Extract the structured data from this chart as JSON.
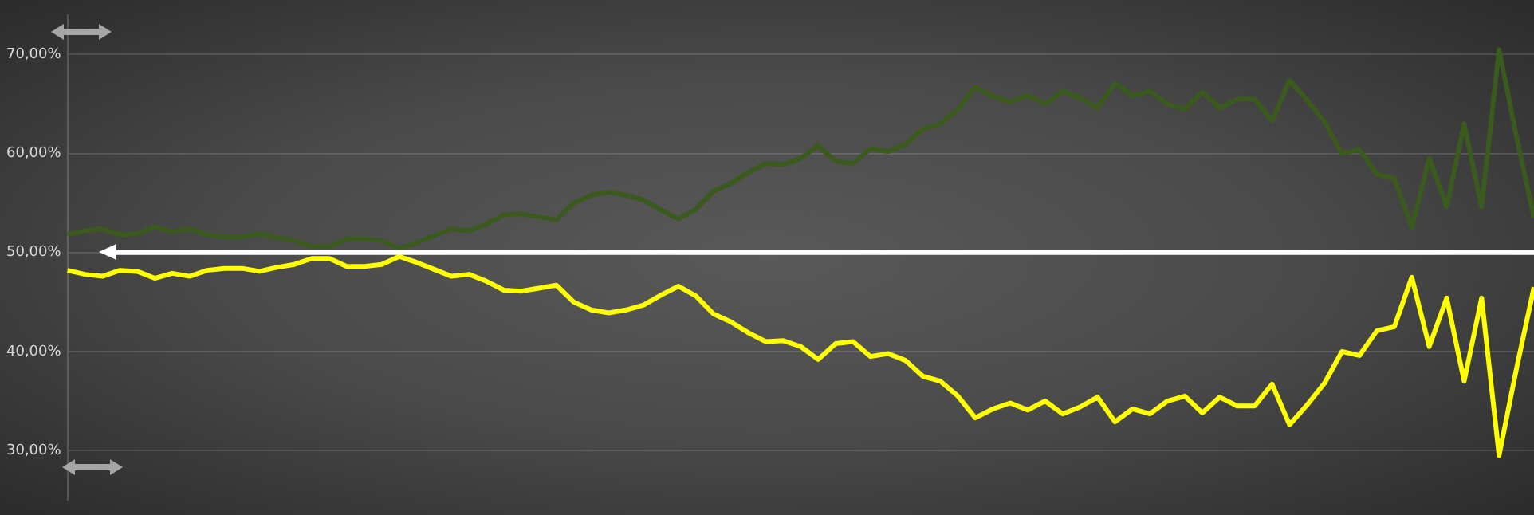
{
  "chart_data": {
    "type": "line",
    "categories": [
      null,
      null,
      null,
      null,
      null,
      null,
      null,
      null,
      null,
      null,
      null,
      null,
      null,
      null,
      null,
      null,
      null,
      null,
      null,
      null,
      null,
      null,
      null,
      null,
      null,
      null,
      null,
      null,
      null,
      null,
      null,
      null,
      null,
      null,
      null,
      null,
      null,
      null,
      null,
      null,
      null,
      null,
      null,
      null,
      null,
      null,
      null,
      null,
      null,
      null,
      null,
      null,
      null,
      null,
      null,
      null,
      null,
      null,
      null,
      null,
      null,
      null,
      null,
      null,
      null,
      null,
      null,
      null,
      null,
      null,
      null,
      null,
      null,
      null,
      null,
      null,
      null,
      null,
      null,
      null,
      null,
      null,
      null,
      null,
      null
    ],
    "series": [
      {
        "color": "#3b5a1e",
        "values": [
          51.8,
          52.2,
          52.4,
          51.8,
          51.9,
          52.6,
          52.1,
          52.4,
          51.8,
          51.6,
          51.6,
          51.9,
          51.5,
          51.2,
          50.6,
          50.6,
          51.4,
          51.4,
          51.2,
          50.4,
          51.0,
          51.7,
          52.4,
          52.2,
          52.9,
          53.8,
          53.9,
          53.6,
          53.3,
          55.0,
          55.8,
          56.1,
          55.8,
          55.3,
          54.3,
          53.4,
          54.4,
          56.2,
          57.0,
          58.1,
          59.0,
          58.9,
          59.5,
          60.8,
          59.2,
          59.0,
          60.5,
          60.2,
          60.9,
          62.5,
          63.0,
          64.5,
          66.7,
          65.8,
          65.2,
          65.9,
          65.0,
          66.3,
          65.6,
          64.6,
          67.1,
          65.8,
          66.3,
          65.0,
          64.5,
          66.2,
          64.6,
          65.5,
          65.5,
          63.3,
          67.4,
          65.4,
          63.2,
          60.0,
          60.4,
          57.9,
          57.5,
          52.5,
          59.5,
          54.6,
          63.0,
          54.6,
          70.5,
          61.7,
          53.5
        ]
      },
      {
        "color": "#ffff00",
        "values": [
          48.2,
          47.8,
          47.6,
          48.2,
          48.1,
          47.4,
          47.9,
          47.6,
          48.2,
          48.4,
          48.4,
          48.1,
          48.5,
          48.8,
          49.4,
          49.4,
          48.6,
          48.6,
          48.8,
          49.6,
          49.0,
          48.3,
          47.6,
          47.8,
          47.1,
          46.2,
          46.1,
          46.4,
          46.7,
          45.0,
          44.2,
          43.9,
          44.2,
          44.7,
          45.7,
          46.6,
          45.6,
          43.8,
          43.0,
          41.9,
          41.0,
          41.1,
          40.5,
          39.2,
          40.8,
          41.0,
          39.5,
          39.8,
          39.1,
          37.5,
          37.0,
          35.5,
          33.3,
          34.2,
          34.8,
          34.1,
          35.0,
          33.7,
          34.4,
          35.4,
          32.9,
          34.2,
          33.7,
          35.0,
          35.5,
          33.8,
          35.4,
          34.5,
          34.5,
          36.7,
          32.6,
          34.6,
          36.8,
          40.0,
          39.6,
          42.1,
          42.5,
          47.5,
          40.5,
          45.4,
          37.0,
          45.4,
          29.5,
          38.3,
          46.5
        ]
      }
    ],
    "ylim": [
      25,
      74
    ],
    "yticks": [
      {
        "value": 30,
        "label": "30,00%"
      },
      {
        "value": 40,
        "label": "40,00%"
      },
      {
        "value": 50,
        "label": "50,00%"
      },
      {
        "value": 60,
        "label": "60,00%"
      },
      {
        "value": 70,
        "label": "70,00%"
      }
    ],
    "grid": "y",
    "legend": false,
    "marker": "none",
    "line_style": "solid",
    "ref_lines": [
      {
        "axis": "y",
        "value": 50,
        "color": "#ffffff"
      }
    ]
  }
}
